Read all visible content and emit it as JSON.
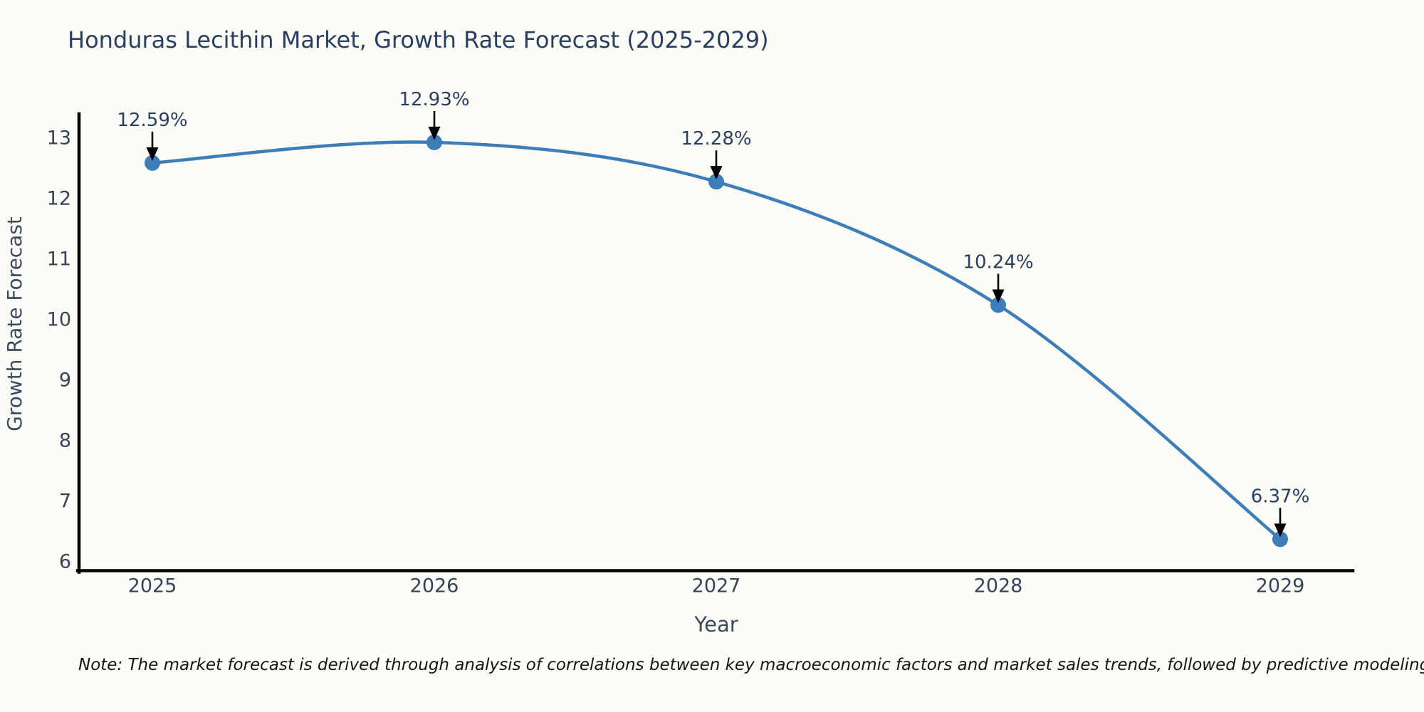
{
  "note": "Note: The market forecast is derived through analysis of correlations between key macroeconomic factors and market sales trends, followed by predictive modeling to project future sales",
  "colors": {
    "line": "#3d7db8",
    "marker": "#3d7db8",
    "title_text": "#2a3f5f",
    "axis_text": "#3b4a5f",
    "tick_text": "#36435a",
    "annotation_text": "#2a3f5f",
    "annotation_arrow": "#000000",
    "axis_line": "#000000",
    "note_text": "#151515",
    "background": "#fdfdf7"
  },
  "chart_data": {
    "type": "line",
    "title": "Honduras Lecithin Market, Growth Rate Forecast (2025-2029)",
    "xlabel": "Year",
    "ylabel": "Growth Rate Forecast",
    "x": [
      2025,
      2026,
      2027,
      2028,
      2029
    ],
    "categories": [
      "2025",
      "2026",
      "2027",
      "2028",
      "2029"
    ],
    "values": [
      12.59,
      12.93,
      12.28,
      10.24,
      6.37
    ],
    "point_labels": [
      "12.59%",
      "12.93%",
      "12.28%",
      "10.24%",
      "6.37%"
    ],
    "yticks": [
      6,
      7,
      8,
      9,
      10,
      11,
      12,
      13
    ],
    "ylim": [
      5.85,
      13.4
    ],
    "grid": false,
    "legend": "none",
    "line_shape": "spline",
    "annotation_style": "label-above-with-black-arrow-down-to-point",
    "marker_style": "filled-circle"
  }
}
